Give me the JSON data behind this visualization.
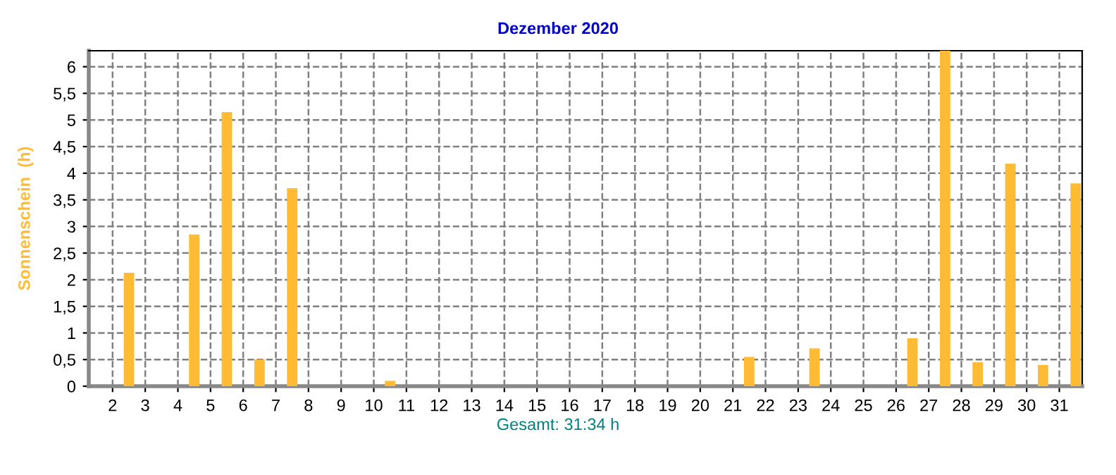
{
  "chart_data": {
    "type": "bar",
    "title": "Dezember 2020",
    "ylabel": "Sonnenschein  (h)",
    "x": [
      1.5,
      2.5,
      3.5,
      4.5,
      5.5,
      6.5,
      7.5,
      8.5,
      9.5,
      10.5,
      11.5,
      12.5,
      13.5,
      14.5,
      15.5,
      16.5,
      17.5,
      18.5,
      19.5,
      20.5,
      21.5,
      22.5,
      23.5,
      24.5,
      25.5,
      26.5,
      27.5,
      28.5,
      29.5,
      30.5,
      31.5
    ],
    "values": [
      0,
      2.13,
      0,
      2.85,
      5.15,
      0.5,
      3.72,
      0,
      0,
      0.1,
      0,
      0,
      0,
      0,
      0,
      0,
      0,
      0,
      0,
      0,
      0.55,
      0,
      0.71,
      0,
      0,
      0.9,
      6.3,
      0.45,
      4.18,
      0.4,
      3.81
    ],
    "color": "#ffbb33",
    "xlim": [
      1.27,
      31.7
    ],
    "xticks": [
      2,
      3,
      4,
      5,
      6,
      7,
      8,
      9,
      10,
      11,
      12,
      13,
      14,
      15,
      16,
      17,
      18,
      19,
      20,
      21,
      22,
      23,
      24,
      25,
      26,
      27,
      28,
      29,
      30,
      31
    ],
    "ylim": [
      0,
      6.3
    ],
    "yticks": [
      0,
      {
        "value": 0.5,
        "label": "0,5"
      },
      1,
      {
        "value": 1.5,
        "label": "1,5"
      },
      2,
      {
        "value": 2.5,
        "label": "2,5"
      },
      3,
      {
        "value": 3.5,
        "label": "3,5"
      },
      4,
      {
        "value": 4.5,
        "label": "4,5"
      },
      5,
      {
        "value": 5.5,
        "label": "5,5"
      },
      6
    ],
    "grid": true,
    "line_style": "dashed",
    "annotations": [
      "Gesamt: 31:34 h"
    ]
  }
}
